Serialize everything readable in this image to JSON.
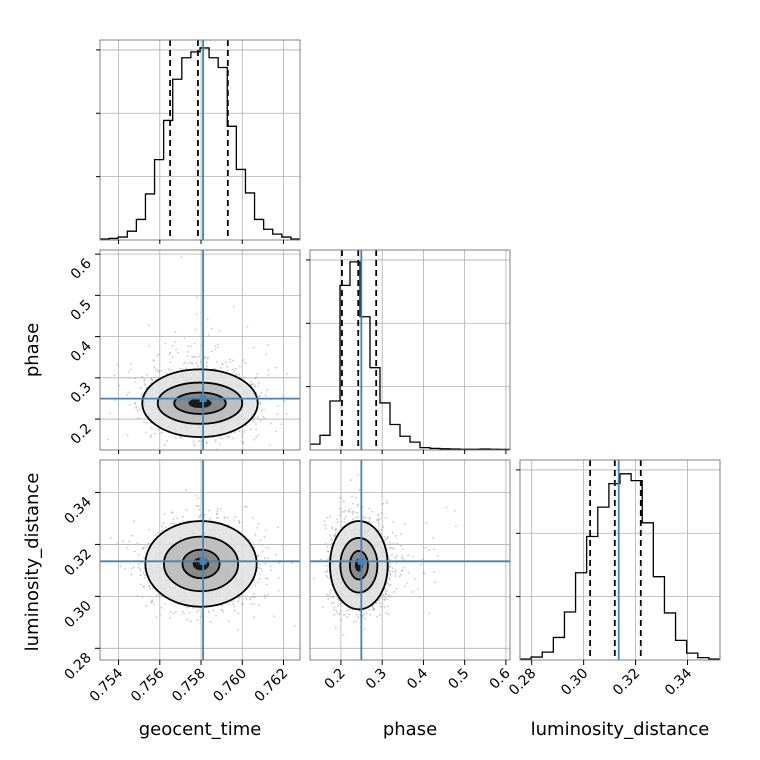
{
  "chart_data": {
    "type": "corner",
    "parameters": [
      "geocent_time",
      "phase",
      "luminosity_distance"
    ],
    "axis_labels": {
      "x": [
        "geocent_time",
        "phase",
        "luminosity_distance"
      ],
      "y": [
        "phase",
        "luminosity_distance"
      ]
    },
    "ranges": {
      "geocent_time": [
        0.7531,
        0.7628
      ],
      "phase": [
        0.125,
        0.61
      ],
      "luminosity_distance": [
        0.2755,
        0.3525
      ]
    },
    "ticks": {
      "geocent_time": {
        "values": [
          0.754,
          0.756,
          0.758,
          0.76,
          0.762
        ],
        "labels": [
          "0.754",
          "0.756",
          "0.758",
          "0.760",
          "0.762"
        ]
      },
      "phase": {
        "values": [
          0.2,
          0.3,
          0.4,
          0.5,
          0.6
        ],
        "labels": [
          "0.2",
          "0.3",
          "0.4",
          "0.5",
          "0.6"
        ]
      },
      "luminosity_distance": {
        "values": [
          0.28,
          0.3,
          0.32,
          0.34
        ],
        "labels": [
          "0.28",
          "0.30",
          "0.32",
          "0.34"
        ]
      }
    },
    "truths": {
      "geocent_time": 0.7581,
      "phase": 0.2495,
      "luminosity_distance": 0.3135
    },
    "quantiles": {
      "geocent_time": [
        0.7565,
        0.75785,
        0.7593
      ],
      "phase": [
        0.2025,
        0.242,
        0.2855
      ],
      "luminosity_distance": [
        0.3025,
        0.312,
        0.322
      ]
    },
    "histograms": {
      "geocent_time": [
        0.005,
        0.008,
        0.015,
        0.045,
        0.105,
        0.235,
        0.41,
        0.61,
        0.82,
        0.93,
        0.96,
        0.98,
        0.93,
        0.88,
        0.58,
        0.36,
        0.24,
        0.105,
        0.055,
        0.03,
        0.015,
        0.005
      ],
      "phase": [
        0.03,
        0.075,
        0.25,
        0.84,
        0.96,
        0.68,
        0.42,
        0.24,
        0.13,
        0.07,
        0.04,
        0.012,
        0.008,
        0.006,
        0.005,
        0.004,
        0.004,
        0.005,
        0.004,
        0.003
      ],
      "luminosity_distance": [
        0.005,
        0.015,
        0.04,
        0.115,
        0.245,
        0.445,
        0.63,
        0.78,
        0.9,
        0.95,
        0.915,
        0.7,
        0.425,
        0.24,
        0.1,
        0.035,
        0.012,
        0.005
      ]
    },
    "contour_levels": [
      {
        "name": "phase_vs_geocent_time",
        "x": "geocent_time",
        "y": "phase",
        "center": [
          0.75795,
          0.2385
        ],
        "ellipses": [
          [
            0.00125,
            0.026
          ],
          [
            0.00205,
            0.05
          ],
          [
            0.0028,
            0.082
          ]
        ]
      },
      {
        "name": "luminosity_distance_vs_geocent_time",
        "x": "geocent_time",
        "y": "luminosity_distance",
        "center": [
          0.758,
          0.3125
        ],
        "ellipses": [
          [
            0.0009,
            0.0055
          ],
          [
            0.0018,
            0.0105
          ],
          [
            0.0027,
            0.0165
          ]
        ]
      },
      {
        "name": "luminosity_distance_vs_phase",
        "x": "phase",
        "y": "luminosity_distance",
        "center": [
          0.2435,
          0.312
        ],
        "ellipses": [
          [
            0.022,
            0.0055
          ],
          [
            0.045,
            0.0105
          ],
          [
            0.07,
            0.017
          ]
        ]
      }
    ],
    "colors": {
      "truth": "#4682b4",
      "lines": "#000000",
      "grid": "#b0b0b0",
      "scatter": "#9a9a9a"
    },
    "grid": true
  }
}
